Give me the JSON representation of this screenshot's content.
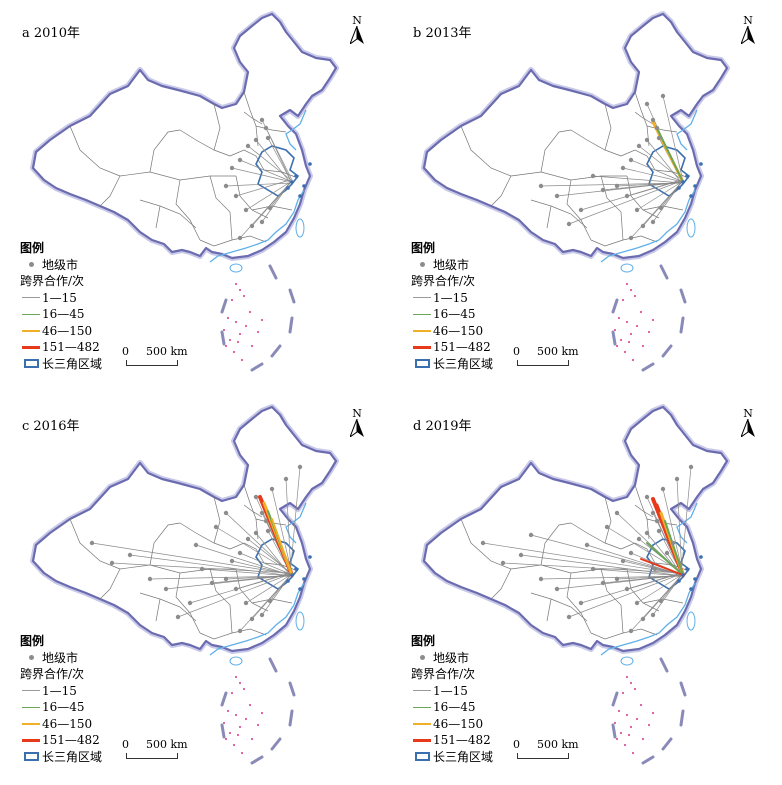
{
  "panels": [
    {
      "title": "a 2010年",
      "level": 0,
      "pos": "tl"
    },
    {
      "title": "b 2013年",
      "level": 1,
      "pos": "tr"
    },
    {
      "title": "c 2016年",
      "level": 2,
      "pos": "bl"
    },
    {
      "title": "d 2019年",
      "level": 3,
      "pos": "br"
    }
  ],
  "north_label": "N",
  "legend": {
    "title": "图例",
    "city_label": "地级市",
    "flow_title": "跨界合作/次",
    "classes": [
      {
        "label": "1—15",
        "color": "#9a9a9a"
      },
      {
        "label": "16—45",
        "color": "#6aa55a"
      },
      {
        "label": "46—150",
        "color": "#f0b02a"
      },
      {
        "label": "151—482",
        "color": "#e83a1a"
      }
    ],
    "region_label": "长三角区域",
    "region_color": "#3a6fb0"
  },
  "scale": {
    "zero": "0",
    "label": "500 km"
  },
  "colors": {
    "border": "#6b6bb0",
    "province": "#777777",
    "coast": "#5fb0e8",
    "islands": "#e0569a"
  }
}
